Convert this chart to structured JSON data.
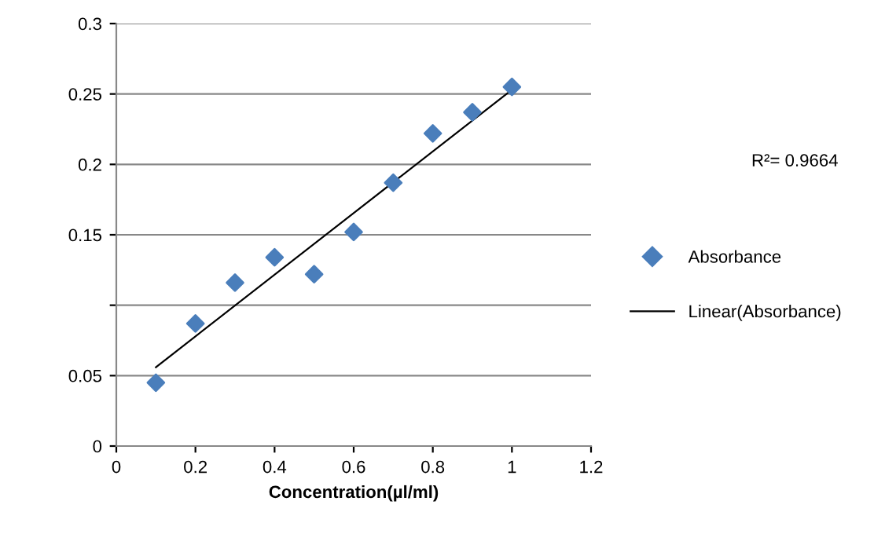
{
  "chart_data": {
    "type": "scatter",
    "xlabel": "Concentration(µl/ml)",
    "series": [
      {
        "name": "Absorbance",
        "color": "#4a7ebb",
        "marker": "diamond",
        "x": [
          0.1,
          0.2,
          0.3,
          0.4,
          0.5,
          0.6,
          0.7,
          0.8,
          0.9,
          1.0
        ],
        "values": [
          0.045,
          0.087,
          0.116,
          0.134,
          0.122,
          0.152,
          0.187,
          0.222,
          0.237,
          0.255
        ]
      },
      {
        "name": "Linear(Absorbance)",
        "type": "line",
        "color": "#000000",
        "marker": "none",
        "x": [
          0.1,
          1.0
        ],
        "values": [
          0.056,
          0.253
        ]
      }
    ],
    "xlim": [
      0,
      1.2
    ],
    "xticks": [
      0,
      0.2,
      0.4,
      0.6,
      0.8,
      1,
      1.2
    ],
    "ylim": [
      0,
      0.3
    ],
    "yticks": [
      0,
      0.05,
      {
        "value": 0.1,
        "label": null
      },
      0.15,
      0.2,
      0.25,
      0.3
    ],
    "grid": "y",
    "legend": "right",
    "annotations": [
      "R²= 0.9664"
    ]
  }
}
